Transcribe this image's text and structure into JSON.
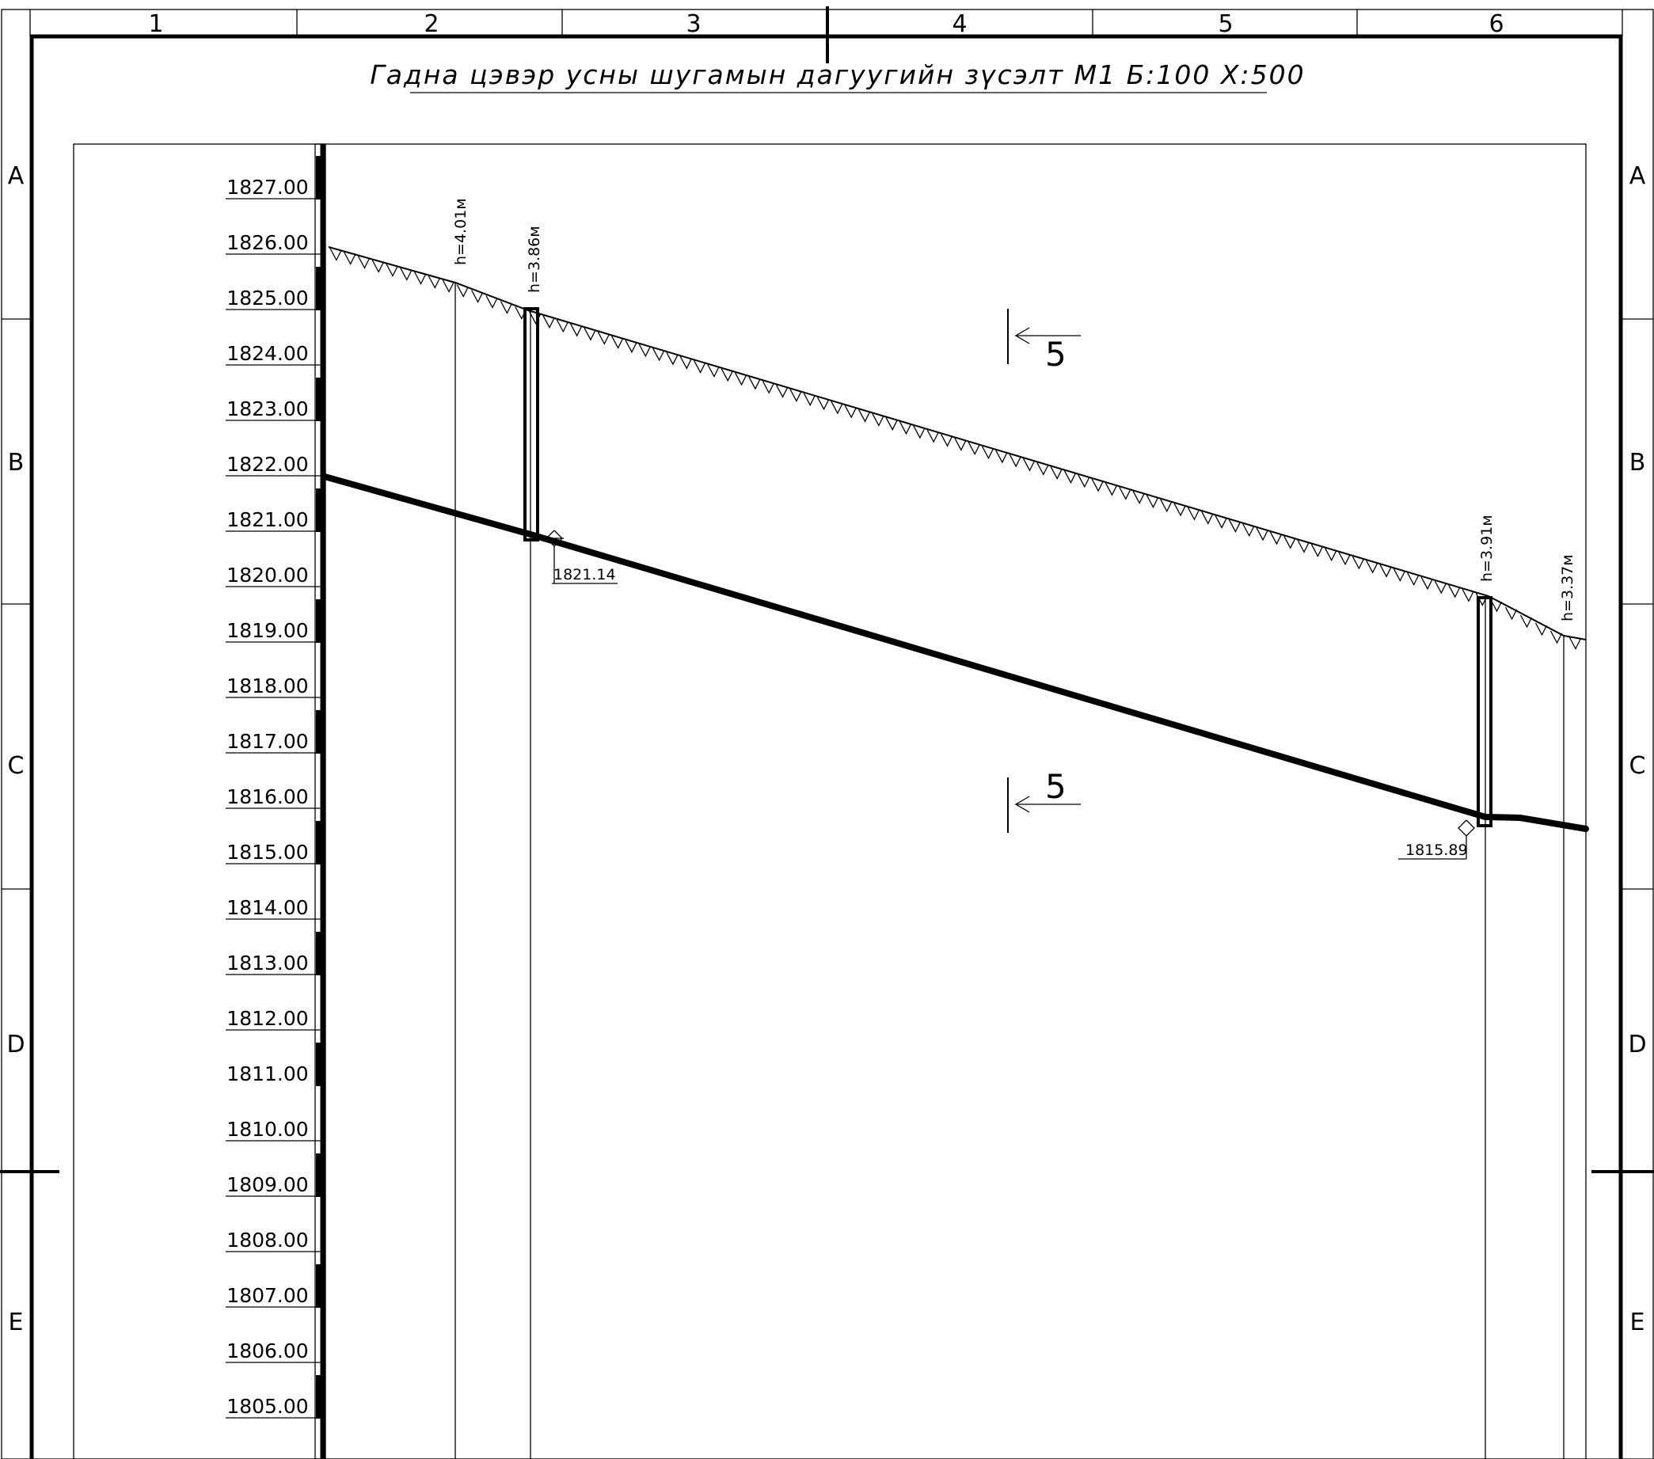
{
  "drawing": {
    "title": "Гадна цэвэр усны шугамын дагуугийн зүсэлт М1 Б:100 Х:500",
    "column_labels": [
      "1",
      "2",
      "3",
      "4",
      "5",
      "6"
    ],
    "row_labels": [
      "A",
      "B",
      "C",
      "D",
      "E"
    ],
    "elevation_labels": [
      "1827.00",
      "1826.00",
      "1825.00",
      "1824.00",
      "1823.00",
      "1822.00",
      "1821.00",
      "1820.00",
      "1819.00",
      "1818.00",
      "1817.00",
      "1816.00",
      "1815.00",
      "1814.00",
      "1813.00",
      "1812.00",
      "1811.00",
      "1810.00",
      "1809.00",
      "1808.00",
      "1807.00",
      "1806.00",
      "1805.00"
    ],
    "depths": [
      {
        "label": "h=4.01м"
      },
      {
        "label": "h=3.86м"
      },
      {
        "label": "h=3.91м"
      },
      {
        "label": "h=3.37м"
      }
    ],
    "invert_marks": [
      {
        "label": "1821.14"
      },
      {
        "label": "1815.89"
      }
    ],
    "section_marker": {
      "label": "5"
    },
    "colors": {
      "line": "#000000",
      "background": "#ffffff"
    }
  }
}
